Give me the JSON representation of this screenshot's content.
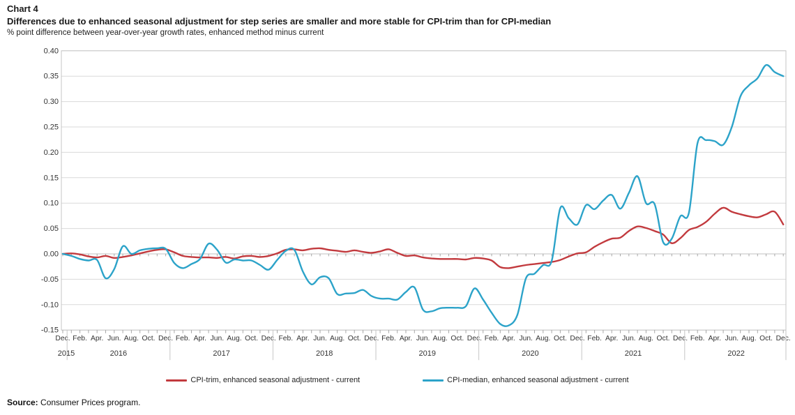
{
  "header": {
    "chart_label": "Chart 4",
    "title": "Differences due to enhanced seasonal adjustment for step series are smaller and more stable for CPI-trim than for CPI-median",
    "subtitle": "% point difference between year-over-year growth rates, enhanced method minus current"
  },
  "legend": [
    {
      "label": "CPI-trim, enhanced seasonal adjustment - current",
      "color": "#c23a3e"
    },
    {
      "label": "CPI-median, enhanced seasonal adjustment - current",
      "color": "#2ca3c9"
    }
  ],
  "source": {
    "label": "Source:",
    "text": " Consumer Prices program."
  },
  "chart_data": {
    "type": "line",
    "title": "Differences due to enhanced seasonal adjustment for step series are smaller and more stable for CPI-trim than for CPI-median",
    "ylabel": "% point difference between year-over-year growth rates, enhanced method minus current",
    "ylim": [
      -0.15,
      0.4
    ],
    "y_tick_step": 0.05,
    "y_tick_labels": [
      "0.40",
      "0.35",
      "0.30",
      "0.25",
      "0.20",
      "0.15",
      "0.10",
      "0.05",
      "0.00",
      "-0.05",
      "-0.10",
      "-0.15"
    ],
    "grid": "horizontal",
    "legend_position": "bottom",
    "x": {
      "start": "2015-12",
      "end": "2022-12",
      "step_months": 1,
      "month_tick_label_pattern": [
        "Dec.",
        "Feb.",
        "Apr.",
        "Jun.",
        "Aug.",
        "Oct."
      ],
      "year_labels": [
        "2015",
        "2016",
        "2017",
        "2018",
        "2019",
        "2020",
        "2021",
        "2022"
      ]
    },
    "series": [
      {
        "name": "CPI-trim, enhanced seasonal adjustment - current",
        "color": "#c23a3e",
        "values": [
          0.0,
          0.001,
          -0.001,
          -0.005,
          -0.007,
          -0.004,
          -0.008,
          -0.006,
          -0.003,
          0.001,
          0.005,
          0.008,
          0.009,
          0.003,
          -0.004,
          -0.006,
          -0.007,
          -0.007,
          -0.008,
          -0.006,
          -0.009,
          -0.005,
          -0.004,
          -0.006,
          -0.004,
          0.001,
          0.008,
          0.009,
          0.007,
          0.01,
          0.011,
          0.008,
          0.006,
          0.004,
          0.007,
          0.004,
          0.002,
          0.005,
          0.009,
          0.002,
          -0.004,
          -0.003,
          -0.007,
          -0.009,
          -0.01,
          -0.01,
          -0.01,
          -0.011,
          -0.008,
          -0.009,
          -0.013,
          -0.026,
          -0.028,
          -0.025,
          -0.022,
          -0.02,
          -0.018,
          -0.016,
          -0.012,
          -0.005,
          0.001,
          0.003,
          0.014,
          0.023,
          0.03,
          0.032,
          0.045,
          0.054,
          0.051,
          0.045,
          0.038,
          0.021,
          0.031,
          0.047,
          0.053,
          0.063,
          0.079,
          0.091,
          0.083,
          0.078,
          0.074,
          0.072,
          0.078,
          0.083,
          0.058
        ]
      },
      {
        "name": "CPI-median, enhanced seasonal adjustment - current",
        "color": "#2ca3c9",
        "values": [
          0.0,
          -0.004,
          -0.01,
          -0.013,
          -0.012,
          -0.048,
          -0.03,
          0.015,
          0.0,
          0.007,
          0.01,
          0.011,
          0.01,
          -0.018,
          -0.028,
          -0.02,
          -0.01,
          0.02,
          0.008,
          -0.017,
          -0.011,
          -0.013,
          -0.013,
          -0.022,
          -0.031,
          -0.012,
          0.006,
          0.008,
          -0.035,
          -0.06,
          -0.046,
          -0.048,
          -0.079,
          -0.078,
          -0.077,
          -0.071,
          -0.083,
          -0.088,
          -0.088,
          -0.09,
          -0.075,
          -0.066,
          -0.11,
          -0.113,
          -0.107,
          -0.106,
          -0.106,
          -0.103,
          -0.068,
          -0.09,
          -0.116,
          -0.138,
          -0.141,
          -0.12,
          -0.048,
          -0.039,
          -0.022,
          -0.014,
          0.09,
          0.07,
          0.058,
          0.096,
          0.088,
          0.105,
          0.116,
          0.089,
          0.12,
          0.153,
          0.1,
          0.098,
          0.023,
          0.03,
          0.074,
          0.081,
          0.218,
          0.224,
          0.222,
          0.215,
          0.25,
          0.31,
          0.332,
          0.346,
          0.372,
          0.358,
          0.35
        ]
      }
    ]
  }
}
